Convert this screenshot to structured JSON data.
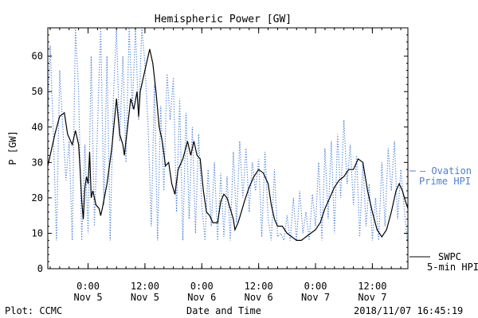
{
  "chart_data": {
    "type": "line",
    "title": "Hemispheric Power [GW]",
    "ylabel": "P [GW]",
    "xlabel": "Date and Time",
    "ylim": [
      0,
      68
    ],
    "xlim": [
      "2018-11-04T15:30",
      "2018-11-07T19:30"
    ],
    "yticks": [
      0,
      10,
      20,
      30,
      40,
      50,
      60
    ],
    "xticks": [
      {
        "t": "2018-11-05T00:00",
        "time": "0:00",
        "date": "Nov 5"
      },
      {
        "t": "2018-11-05T12:00",
        "time": "12:00",
        "date": "Nov 5"
      },
      {
        "t": "2018-11-06T00:00",
        "time": "0:00",
        "date": "Nov 6"
      },
      {
        "t": "2018-11-06T12:00",
        "time": "12:00",
        "date": "Nov 6"
      },
      {
        "t": "2018-11-07T00:00",
        "time": "0:00",
        "date": "Nov 7"
      },
      {
        "t": "2018-11-07T12:00",
        "time": "12:00",
        "date": "Nov 7"
      }
    ],
    "series": [
      {
        "name": "SWPC 5-min HPI",
        "color": "#000000",
        "style": "solid",
        "points": [
          [
            "2018-11-04T15:30",
            29
          ],
          [
            "2018-11-04T16:00",
            32
          ],
          [
            "2018-11-04T17:00",
            38
          ],
          [
            "2018-11-04T18:00",
            43
          ],
          [
            "2018-11-04T19:00",
            44
          ],
          [
            "2018-11-04T19:40",
            38
          ],
          [
            "2018-11-04T20:40",
            35
          ],
          [
            "2018-11-04T21:20",
            39
          ],
          [
            "2018-11-04T22:00",
            35
          ],
          [
            "2018-11-04T22:20",
            28
          ],
          [
            "2018-11-04T22:40",
            19
          ],
          [
            "2018-11-04T23:00",
            14
          ],
          [
            "2018-11-04T23:20",
            23
          ],
          [
            "2018-11-04T23:40",
            26
          ],
          [
            "2018-11-05T00:00",
            24
          ],
          [
            "2018-11-05T00:20",
            33
          ],
          [
            "2018-11-05T00:40",
            20
          ],
          [
            "2018-11-05T01:00",
            22
          ],
          [
            "2018-11-05T01:40",
            18
          ],
          [
            "2018-11-05T02:20",
            17
          ],
          [
            "2018-11-05T02:40",
            15
          ],
          [
            "2018-11-05T03:00",
            17
          ],
          [
            "2018-11-05T04:00",
            24
          ],
          [
            "2018-11-05T05:00",
            34
          ],
          [
            "2018-11-05T06:00",
            48
          ],
          [
            "2018-11-05T06:40",
            38
          ],
          [
            "2018-11-05T07:20",
            35
          ],
          [
            "2018-11-05T07:40",
            32
          ],
          [
            "2018-11-05T08:20",
            40
          ],
          [
            "2018-11-05T09:00",
            48
          ],
          [
            "2018-11-05T09:40",
            45
          ],
          [
            "2018-11-05T10:20",
            50
          ],
          [
            "2018-11-05T10:40",
            43
          ],
          [
            "2018-11-05T11:00",
            50
          ],
          [
            "2018-11-05T12:00",
            56
          ],
          [
            "2018-11-05T13:00",
            62
          ],
          [
            "2018-11-05T13:40",
            58
          ],
          [
            "2018-11-05T14:20",
            50
          ],
          [
            "2018-11-05T15:00",
            40
          ],
          [
            "2018-11-05T15:40",
            36
          ],
          [
            "2018-11-05T16:20",
            29
          ],
          [
            "2018-11-05T17:00",
            30
          ],
          [
            "2018-11-05T17:40",
            24
          ],
          [
            "2018-11-05T18:20",
            21
          ],
          [
            "2018-11-05T19:00",
            28
          ],
          [
            "2018-11-05T20:00",
            31
          ],
          [
            "2018-11-05T21:00",
            36
          ],
          [
            "2018-11-05T21:40",
            32
          ],
          [
            "2018-11-05T22:20",
            36
          ],
          [
            "2018-11-05T23:00",
            32
          ],
          [
            "2018-11-05T23:40",
            31
          ],
          [
            "2018-11-06T00:20",
            22
          ],
          [
            "2018-11-06T01:00",
            16
          ],
          [
            "2018-11-06T01:40",
            15
          ],
          [
            "2018-11-06T02:20",
            13
          ],
          [
            "2018-11-06T03:20",
            13
          ],
          [
            "2018-11-06T04:00",
            19
          ],
          [
            "2018-11-06T04:40",
            21
          ],
          [
            "2018-11-06T05:20",
            20
          ],
          [
            "2018-11-06T06:00",
            17
          ],
          [
            "2018-11-06T06:40",
            14
          ],
          [
            "2018-11-06T07:00",
            11
          ],
          [
            "2018-11-06T07:40",
            13
          ],
          [
            "2018-11-06T08:20",
            16
          ],
          [
            "2018-11-06T09:00",
            19
          ],
          [
            "2018-11-06T10:00",
            23
          ],
          [
            "2018-11-06T11:00",
            26
          ],
          [
            "2018-11-06T12:00",
            28
          ],
          [
            "2018-11-06T13:00",
            27
          ],
          [
            "2018-11-06T14:00",
            24
          ],
          [
            "2018-11-06T14:40",
            18
          ],
          [
            "2018-11-06T15:20",
            14
          ],
          [
            "2018-11-06T16:00",
            12
          ],
          [
            "2018-11-06T17:00",
            12
          ],
          [
            "2018-11-06T18:00",
            10
          ],
          [
            "2018-11-06T19:00",
            9
          ],
          [
            "2018-11-06T20:00",
            8
          ],
          [
            "2018-11-06T21:00",
            8
          ],
          [
            "2018-11-06T22:00",
            9
          ],
          [
            "2018-11-06T23:00",
            10
          ],
          [
            "2018-11-07T00:00",
            11
          ],
          [
            "2018-11-07T01:00",
            13
          ],
          [
            "2018-11-07T02:00",
            17
          ],
          [
            "2018-11-07T03:00",
            20
          ],
          [
            "2018-11-07T04:00",
            23
          ],
          [
            "2018-11-07T05:00",
            25
          ],
          [
            "2018-11-07T06:00",
            26
          ],
          [
            "2018-11-07T07:00",
            28
          ],
          [
            "2018-11-07T08:00",
            28
          ],
          [
            "2018-11-07T09:00",
            31
          ],
          [
            "2018-11-07T10:00",
            30
          ],
          [
            "2018-11-07T11:00",
            22
          ],
          [
            "2018-11-07T12:00",
            16
          ],
          [
            "2018-11-07T13:00",
            11
          ],
          [
            "2018-11-07T14:00",
            9
          ],
          [
            "2018-11-07T15:00",
            11
          ],
          [
            "2018-11-07T16:00",
            16
          ],
          [
            "2018-11-07T17:00",
            22
          ],
          [
            "2018-11-07T17:40",
            24
          ],
          [
            "2018-11-07T18:20",
            22
          ],
          [
            "2018-11-07T19:00",
            19
          ],
          [
            "2018-11-07T19:30",
            17
          ]
        ]
      },
      {
        "name": "Ovation Prime HPI",
        "color": "#4a80d8",
        "style": "dotted",
        "points": [
          [
            "2018-11-04T15:30",
            44
          ],
          [
            "2018-11-04T16:00",
            63
          ],
          [
            "2018-11-04T16:40",
            39
          ],
          [
            "2018-11-04T17:20",
            8
          ],
          [
            "2018-11-04T18:00",
            56
          ],
          [
            "2018-11-04T18:40",
            40
          ],
          [
            "2018-11-04T19:20",
            25
          ],
          [
            "2018-11-04T20:00",
            36
          ],
          [
            "2018-11-04T20:40",
            8
          ],
          [
            "2018-11-04T21:20",
            68
          ],
          [
            "2018-11-04T22:00",
            50
          ],
          [
            "2018-11-04T22:40",
            8
          ],
          [
            "2018-11-04T23:20",
            35
          ],
          [
            "2018-11-05T00:00",
            10
          ],
          [
            "2018-11-05T00:40",
            60
          ],
          [
            "2018-11-05T01:20",
            12
          ],
          [
            "2018-11-05T02:00",
            40
          ],
          [
            "2018-11-05T02:40",
            68
          ],
          [
            "2018-11-05T03:20",
            18
          ],
          [
            "2018-11-05T04:00",
            60
          ],
          [
            "2018-11-05T04:40",
            8
          ],
          [
            "2018-11-05T05:20",
            48
          ],
          [
            "2018-11-05T06:00",
            68
          ],
          [
            "2018-11-05T06:40",
            36
          ],
          [
            "2018-11-05T07:20",
            60
          ],
          [
            "2018-11-05T08:00",
            30
          ],
          [
            "2018-11-05T08:40",
            68
          ],
          [
            "2018-11-05T09:20",
            45
          ],
          [
            "2018-11-05T10:00",
            68
          ],
          [
            "2018-11-05T10:40",
            42
          ],
          [
            "2018-11-05T11:20",
            68
          ],
          [
            "2018-11-05T12:00",
            58
          ],
          [
            "2018-11-05T12:40",
            40
          ],
          [
            "2018-11-05T13:20",
            12
          ],
          [
            "2018-11-05T14:00",
            52
          ],
          [
            "2018-11-05T14:40",
            8
          ],
          [
            "2018-11-05T15:20",
            46
          ],
          [
            "2018-11-05T16:00",
            22
          ],
          [
            "2018-11-05T16:40",
            55
          ],
          [
            "2018-11-05T17:20",
            42
          ],
          [
            "2018-11-05T18:00",
            54
          ],
          [
            "2018-11-05T18:40",
            16
          ],
          [
            "2018-11-05T19:20",
            48
          ],
          [
            "2018-11-05T20:00",
            8
          ],
          [
            "2018-11-05T20:40",
            44
          ],
          [
            "2018-11-05T21:20",
            14
          ],
          [
            "2018-11-05T22:00",
            40
          ],
          [
            "2018-11-05T22:40",
            10
          ],
          [
            "2018-11-05T23:20",
            38
          ],
          [
            "2018-11-06T00:00",
            18
          ],
          [
            "2018-11-06T00:40",
            8
          ],
          [
            "2018-11-06T01:20",
            28
          ],
          [
            "2018-11-06T02:00",
            12
          ],
          [
            "2018-11-06T02:40",
            30
          ],
          [
            "2018-11-06T03:20",
            8
          ],
          [
            "2018-11-06T04:00",
            27
          ],
          [
            "2018-11-06T04:40",
            9
          ],
          [
            "2018-11-06T05:20",
            26
          ],
          [
            "2018-11-06T06:00",
            8
          ],
          [
            "2018-11-06T06:40",
            33
          ],
          [
            "2018-11-06T07:20",
            13
          ],
          [
            "2018-11-06T08:00",
            36
          ],
          [
            "2018-11-06T08:40",
            20
          ],
          [
            "2018-11-06T09:20",
            34
          ],
          [
            "2018-11-06T10:00",
            16
          ],
          [
            "2018-11-06T10:40",
            30
          ],
          [
            "2018-11-06T11:20",
            22
          ],
          [
            "2018-11-06T12:00",
            31
          ],
          [
            "2018-11-06T12:40",
            9
          ],
          [
            "2018-11-06T13:20",
            33
          ],
          [
            "2018-11-06T14:00",
            14
          ],
          [
            "2018-11-06T14:40",
            8
          ],
          [
            "2018-11-06T15:20",
            28
          ],
          [
            "2018-11-06T16:00",
            9
          ],
          [
            "2018-11-06T16:40",
            10
          ],
          [
            "2018-11-06T17:20",
            8
          ],
          [
            "2018-11-06T18:00",
            15
          ],
          [
            "2018-11-06T18:40",
            8
          ],
          [
            "2018-11-06T19:20",
            20
          ],
          [
            "2018-11-06T20:00",
            8
          ],
          [
            "2018-11-06T20:40",
            22
          ],
          [
            "2018-11-06T21:20",
            10
          ],
          [
            "2018-11-06T22:00",
            16
          ],
          [
            "2018-11-06T22:40",
            8
          ],
          [
            "2018-11-06T23:20",
            21
          ],
          [
            "2018-11-07T00:00",
            12
          ],
          [
            "2018-11-07T00:40",
            30
          ],
          [
            "2018-11-07T01:20",
            8
          ],
          [
            "2018-11-07T02:00",
            34
          ],
          [
            "2018-11-07T02:40",
            14
          ],
          [
            "2018-11-07T03:20",
            36
          ],
          [
            "2018-11-07T04:00",
            10
          ],
          [
            "2018-11-07T04:40",
            38
          ],
          [
            "2018-11-07T05:20",
            20
          ],
          [
            "2018-11-07T06:00",
            42
          ],
          [
            "2018-11-07T06:40",
            24
          ],
          [
            "2018-11-07T07:20",
            35
          ],
          [
            "2018-11-07T08:00",
            18
          ],
          [
            "2018-11-07T08:40",
            32
          ],
          [
            "2018-11-07T09:20",
            9
          ],
          [
            "2018-11-07T10:00",
            30
          ],
          [
            "2018-11-07T10:40",
            12
          ],
          [
            "2018-11-07T11:20",
            24
          ],
          [
            "2018-11-07T12:00",
            8
          ],
          [
            "2018-11-07T12:40",
            20
          ],
          [
            "2018-11-07T13:20",
            8
          ],
          [
            "2018-11-07T14:00",
            30
          ],
          [
            "2018-11-07T14:40",
            12
          ],
          [
            "2018-11-07T15:20",
            34
          ],
          [
            "2018-11-07T16:00",
            22
          ],
          [
            "2018-11-07T16:40",
            36
          ],
          [
            "2018-11-07T17:20",
            14
          ],
          [
            "2018-11-07T18:00",
            28
          ],
          [
            "2018-11-07T18:40",
            18
          ],
          [
            "2018-11-07T19:20",
            8
          ]
        ]
      }
    ],
    "legend": {
      "ovation_line1": "– Ovation",
      "ovation_line2": "Prime HPI",
      "swpc_line1": "SWPC",
      "swpc_line2": "5-min HPI",
      "placement": "right, outside plot"
    },
    "grid": false
  },
  "footer": {
    "credit": "Plot: CCMC",
    "xlabel": "Date and Time",
    "timestamp": "2018/11/07 16:45:19"
  }
}
